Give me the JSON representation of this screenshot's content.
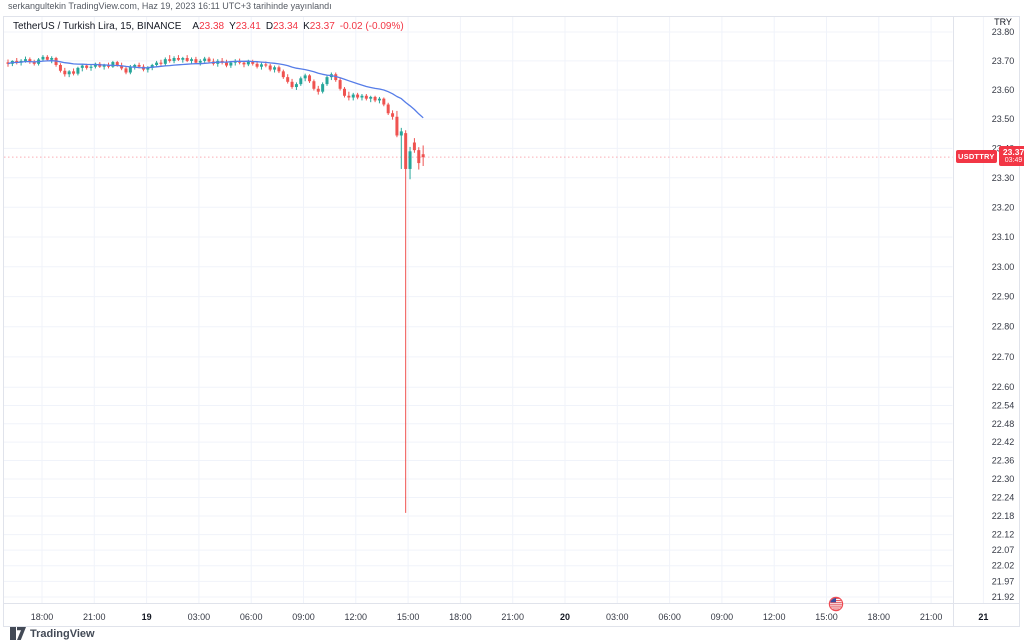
{
  "attribution": "serkangultekin TradingView.com, Haz 19, 2023 16:11 UTC+3 tarihinde yayınlandı",
  "legend": {
    "symbol_title": "TetherUS / Turkish Lira, 15, BINANCE",
    "ohlc": [
      {
        "label": "A",
        "value": "23.38"
      },
      {
        "label": "Y",
        "value": "23.41"
      },
      {
        "label": "D",
        "value": "23.34"
      },
      {
        "label": "K",
        "value": "23.37"
      }
    ],
    "change": "-0.02 (-0.09%)"
  },
  "price_tag": {
    "symbol": "USDTTRY",
    "price": "23.37",
    "countdown": "03:49"
  },
  "price_axis": {
    "currency": "TRY",
    "ticks": [
      "23.80",
      "23.70",
      "23.60",
      "23.50",
      "23.40",
      "23.30",
      "23.20",
      "23.10",
      "23.00",
      "22.90",
      "22.80",
      "22.70",
      "22.60",
      "22.54",
      "22.48",
      "22.42",
      "22.36",
      "22.30",
      "22.24",
      "22.18",
      "22.12",
      "22.07",
      "22.02",
      "21.97",
      "21.92"
    ]
  },
  "time_axis": {
    "labels": [
      {
        "text": "18:00",
        "day": false
      },
      {
        "text": "21:00",
        "day": false
      },
      {
        "text": "19",
        "day": true
      },
      {
        "text": "03:00",
        "day": false
      },
      {
        "text": "06:00",
        "day": false
      },
      {
        "text": "09:00",
        "day": false
      },
      {
        "text": "12:00",
        "day": false
      },
      {
        "text": "15:00",
        "day": false
      },
      {
        "text": "18:00",
        "day": false
      },
      {
        "text": "21:00",
        "day": false
      },
      {
        "text": "20",
        "day": true
      },
      {
        "text": "03:00",
        "day": false
      },
      {
        "text": "06:00",
        "day": false
      },
      {
        "text": "09:00",
        "day": false
      },
      {
        "text": "12:00",
        "day": false
      },
      {
        "text": "15:00",
        "day": false
      },
      {
        "text": "18:00",
        "day": false
      },
      {
        "text": "21:00",
        "day": false
      },
      {
        "text": "21",
        "day": true
      }
    ]
  },
  "event_marker": {
    "icon": "us-flag"
  },
  "watermark": {
    "brand": "TradingView"
  },
  "colors": {
    "up": "#26a69a",
    "down": "#ef5350",
    "ma_line": "#567de8",
    "accent_red": "#f23645",
    "grid": "#f0f3fa",
    "frame": "#e0e3eb",
    "axis_text": "#363a45",
    "day_text": "#131722"
  },
  "chart_data": {
    "type": "candlestick",
    "title": "TetherUS / Turkish Lira",
    "symbol": "USDTTRY",
    "exchange": "BINANCE",
    "interval_minutes": 15,
    "price_scale": "log",
    "ylim": [
      21.9,
      23.82
    ],
    "last_price": 23.37,
    "last_candle": {
      "open": 23.38,
      "high": 23.41,
      "low": 23.34,
      "close": 23.37
    },
    "flash_crash_low": 22.19,
    "overlays": [
      {
        "type": "moving-average",
        "color": "#567de8"
      }
    ],
    "candles": [
      [
        23.695,
        23.705,
        23.68,
        23.69
      ],
      [
        23.69,
        23.702,
        23.682,
        23.7
      ],
      [
        23.7,
        23.71,
        23.688,
        23.694
      ],
      [
        23.694,
        23.706,
        23.684,
        23.7
      ],
      [
        23.7,
        23.715,
        23.694,
        23.706
      ],
      [
        23.706,
        23.712,
        23.69,
        23.696
      ],
      [
        23.696,
        23.704,
        23.684,
        23.69
      ],
      [
        23.69,
        23.71,
        23.684,
        23.705
      ],
      [
        23.705,
        23.72,
        23.698,
        23.714
      ],
      [
        23.714,
        23.72,
        23.7,
        23.704
      ],
      [
        23.704,
        23.716,
        23.692,
        23.71
      ],
      [
        23.71,
        23.714,
        23.68,
        23.686
      ],
      [
        23.686,
        23.692,
        23.66,
        23.666
      ],
      [
        23.666,
        23.676,
        23.646,
        23.654
      ],
      [
        23.654,
        23.668,
        23.644,
        23.664
      ],
      [
        23.664,
        23.674,
        23.65,
        23.656
      ],
      [
        23.656,
        23.68,
        23.65,
        23.676
      ],
      [
        23.676,
        23.69,
        23.664,
        23.684
      ],
      [
        23.684,
        23.69,
        23.67,
        23.676
      ],
      [
        23.676,
        23.686,
        23.666,
        23.68
      ],
      [
        23.68,
        23.694,
        23.674,
        23.69
      ],
      [
        23.69,
        23.696,
        23.676,
        23.68
      ],
      [
        23.68,
        23.69,
        23.67,
        23.686
      ],
      [
        23.686,
        23.694,
        23.674,
        23.68
      ],
      [
        23.68,
        23.7,
        23.676,
        23.696
      ],
      [
        23.696,
        23.7,
        23.68,
        23.684
      ],
      [
        23.684,
        23.694,
        23.668,
        23.674
      ],
      [
        23.674,
        23.68,
        23.654,
        23.66
      ],
      [
        23.66,
        23.686,
        23.654,
        23.68
      ],
      [
        23.68,
        23.69,
        23.67,
        23.686
      ],
      [
        23.686,
        23.694,
        23.674,
        23.68
      ],
      [
        23.68,
        23.688,
        23.664,
        23.67
      ],
      [
        23.67,
        23.682,
        23.66,
        23.676
      ],
      [
        23.676,
        23.69,
        23.668,
        23.686
      ],
      [
        23.686,
        23.7,
        23.678,
        23.694
      ],
      [
        23.694,
        23.704,
        23.684,
        23.69
      ],
      [
        23.69,
        23.712,
        23.684,
        23.706
      ],
      [
        23.706,
        23.72,
        23.694,
        23.7
      ],
      [
        23.7,
        23.716,
        23.692,
        23.71
      ],
      [
        23.71,
        23.72,
        23.7,
        23.704
      ],
      [
        23.704,
        23.714,
        23.694,
        23.71
      ],
      [
        23.71,
        23.72,
        23.696,
        23.7
      ],
      [
        23.7,
        23.712,
        23.69,
        23.706
      ],
      [
        23.706,
        23.714,
        23.69,
        23.694
      ],
      [
        23.694,
        23.706,
        23.684,
        23.7
      ],
      [
        23.7,
        23.714,
        23.694,
        23.708
      ],
      [
        23.708,
        23.714,
        23.694,
        23.698
      ],
      [
        23.698,
        23.708,
        23.684,
        23.69
      ],
      [
        23.69,
        23.706,
        23.68,
        23.7
      ],
      [
        23.7,
        23.71,
        23.688,
        23.694
      ],
      [
        23.694,
        23.704,
        23.678,
        23.684
      ],
      [
        23.684,
        23.7,
        23.676,
        23.694
      ],
      [
        23.694,
        23.706,
        23.684,
        23.7
      ],
      [
        23.7,
        23.708,
        23.688,
        23.694
      ],
      [
        23.694,
        23.7,
        23.678,
        23.688
      ],
      [
        23.688,
        23.704,
        23.682,
        23.698
      ],
      [
        23.698,
        23.704,
        23.684,
        23.69
      ],
      [
        23.69,
        23.698,
        23.674,
        23.68
      ],
      [
        23.68,
        23.694,
        23.67,
        23.688
      ],
      [
        23.688,
        23.698,
        23.678,
        23.684
      ],
      [
        23.684,
        23.69,
        23.664,
        23.67
      ],
      [
        23.67,
        23.684,
        23.66,
        23.678
      ],
      [
        23.678,
        23.684,
        23.658,
        23.664
      ],
      [
        23.664,
        23.67,
        23.638,
        23.644
      ],
      [
        23.644,
        23.654,
        23.622,
        23.628
      ],
      [
        23.628,
        23.638,
        23.604,
        23.61
      ],
      [
        23.61,
        23.626,
        23.6,
        23.62
      ],
      [
        23.62,
        23.646,
        23.614,
        23.64
      ],
      [
        23.64,
        23.656,
        23.63,
        23.65
      ],
      [
        23.65,
        23.654,
        23.624,
        23.63
      ],
      [
        23.63,
        23.636,
        23.598,
        23.604
      ],
      [
        23.604,
        23.614,
        23.584,
        23.594
      ],
      [
        23.594,
        23.626,
        23.588,
        23.62
      ],
      [
        23.62,
        23.65,
        23.614,
        23.644
      ],
      [
        23.644,
        23.66,
        23.634,
        23.654
      ],
      [
        23.654,
        23.66,
        23.628,
        23.634
      ],
      [
        23.634,
        23.64,
        23.598,
        23.604
      ],
      [
        23.604,
        23.61,
        23.574,
        23.58
      ],
      [
        23.58,
        23.594,
        23.564,
        23.574
      ],
      [
        23.574,
        23.59,
        23.564,
        23.584
      ],
      [
        23.584,
        23.59,
        23.568,
        23.574
      ],
      [
        23.574,
        23.586,
        23.564,
        23.58
      ],
      [
        23.58,
        23.586,
        23.564,
        23.57
      ],
      [
        23.57,
        23.58,
        23.558,
        23.576
      ],
      [
        23.576,
        23.58,
        23.558,
        23.564
      ],
      [
        23.564,
        23.576,
        23.554,
        23.57
      ],
      [
        23.57,
        23.574,
        23.544,
        23.55
      ],
      [
        23.55,
        23.556,
        23.514,
        23.52
      ],
      [
        23.52,
        23.53,
        23.498,
        23.508
      ],
      [
        23.508,
        23.528,
        23.438,
        23.444
      ],
      [
        23.444,
        23.47,
        23.33,
        23.458
      ],
      [
        23.452,
        23.462,
        22.19,
        23.33
      ],
      [
        23.33,
        23.405,
        23.295,
        23.39
      ],
      [
        23.42,
        23.435,
        23.385,
        23.394
      ],
      [
        23.394,
        23.404,
        23.328,
        23.35
      ],
      [
        23.38,
        23.41,
        23.34,
        23.37
      ]
    ]
  }
}
